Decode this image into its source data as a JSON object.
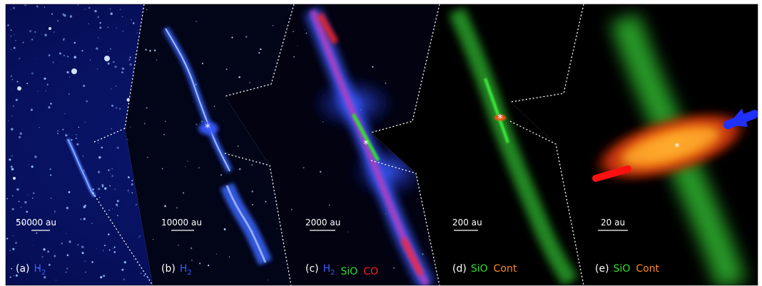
{
  "colors": {
    "h2_blue": "#3a5cff",
    "sio_green": "#33dd33",
    "co_red": "#ff2020",
    "cont_orange": "#ff8a1a",
    "label_white": "#ffffff"
  },
  "panels": [
    {
      "id": "a",
      "letter": "(a)",
      "scale": "50000 au",
      "tracers": [
        {
          "text": "H",
          "sub": "2",
          "color": "#3a5cff"
        }
      ]
    },
    {
      "id": "b",
      "letter": "(b)",
      "scale": "10000 au",
      "tracers": [
        {
          "text": "H",
          "sub": "2",
          "color": "#3a5cff"
        }
      ]
    },
    {
      "id": "c",
      "letter": "(c)",
      "scale": "2000 au",
      "tracers": [
        {
          "text": "H",
          "sub": "2",
          "color": "#3a5cff"
        },
        {
          "text": "SiO",
          "sub": "",
          "color": "#33dd33"
        },
        {
          "text": "CO",
          "sub": "",
          "color": "#ff2020"
        }
      ]
    },
    {
      "id": "d",
      "letter": "(d)",
      "scale": "200 au",
      "tracers": [
        {
          "text": "SiO",
          "sub": "",
          "color": "#33dd33"
        },
        {
          "text": "Cont",
          "sub": "",
          "color": "#ff8a1a"
        }
      ]
    },
    {
      "id": "e",
      "letter": "(e)",
      "scale": "20 au",
      "tracers": [
        {
          "text": "SiO",
          "sub": "",
          "color": "#33dd33"
        },
        {
          "text": "Cont",
          "sub": "",
          "color": "#ff8a1a"
        }
      ]
    }
  ],
  "source_marker": "*"
}
